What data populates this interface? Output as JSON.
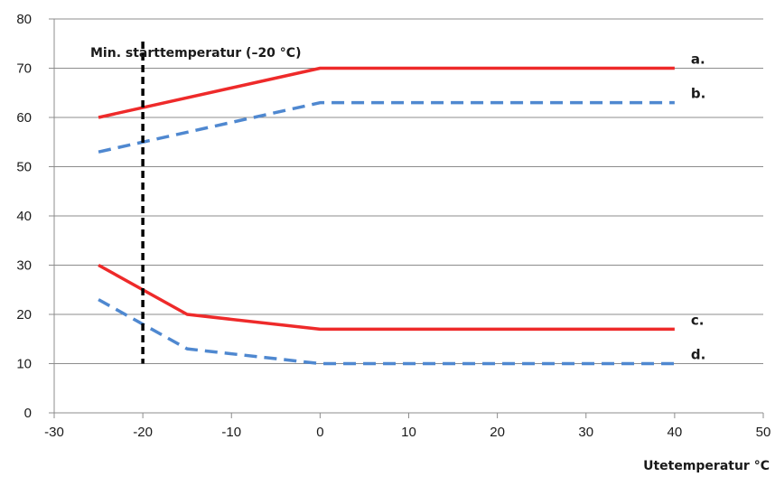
{
  "chart_data": {
    "type": "line",
    "title": "",
    "xlabel": "Utetemperatur °C",
    "ylabel": "",
    "xlim": [
      -30,
      50
    ],
    "ylim": [
      0,
      80
    ],
    "xticks": [
      -30,
      -20,
      -10,
      0,
      10,
      20,
      30,
      40,
      50
    ],
    "yticks": [
      0,
      10,
      20,
      30,
      40,
      50,
      60,
      70,
      80
    ],
    "grid": "horizontal",
    "annotation": {
      "label": "Min. starttemperatur (–20 °C)",
      "x": -20,
      "y_range": [
        10,
        80
      ]
    },
    "series": [
      {
        "name": "a.",
        "color": "#ee2a2a",
        "style": "solid",
        "x": [
          -25,
          0,
          40
        ],
        "values": [
          60,
          70,
          70
        ]
      },
      {
        "name": "b.",
        "color": "#4f88d0",
        "style": "dashed",
        "x": [
          -25,
          0,
          40
        ],
        "values": [
          53,
          63,
          63
        ]
      },
      {
        "name": "c.",
        "color": "#ee2a2a",
        "style": "solid",
        "x": [
          -25,
          -15,
          0,
          40
        ],
        "values": [
          30,
          20,
          17,
          17
        ]
      },
      {
        "name": "d.",
        "color": "#4f88d0",
        "style": "dashed",
        "x": [
          -25,
          -15,
          0,
          40
        ],
        "values": [
          23,
          13,
          10,
          10
        ]
      }
    ]
  }
}
